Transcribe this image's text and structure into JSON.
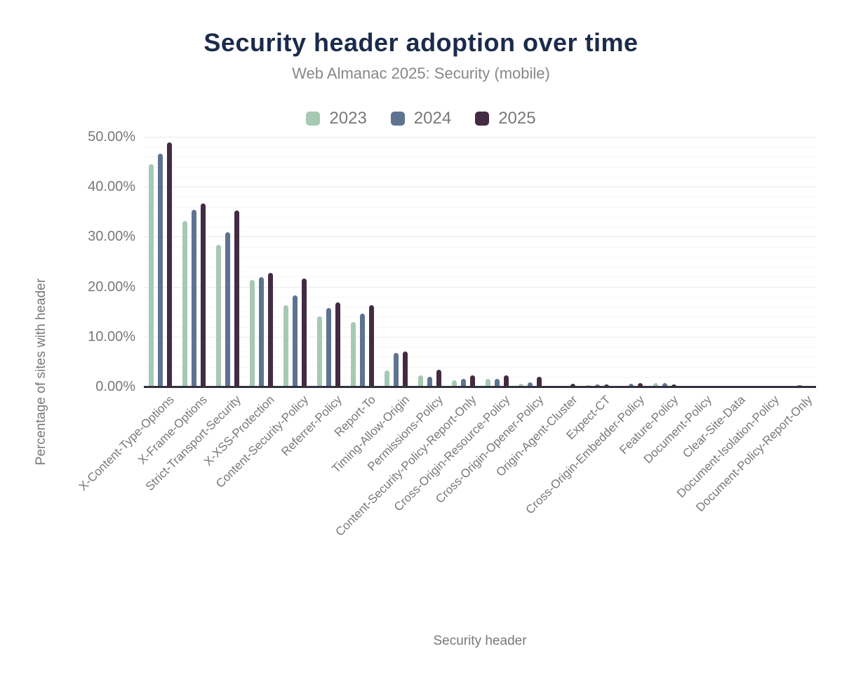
{
  "chart_data": {
    "type": "bar",
    "title": "Security header adoption over time",
    "subtitle": "Web Almanac 2025: Security (mobile)",
    "xlabel": "Security header",
    "ylabel": "Percentage of sites with header",
    "ylim": [
      0,
      50
    ],
    "ytick_step": 10,
    "minor_grid_step": 2,
    "grid": true,
    "legend_position": "top",
    "ytick_labels": [
      "0.00%",
      "10.00%",
      "20.00%",
      "30.00%",
      "40.00%",
      "50.00%"
    ],
    "categories": [
      "X-Content-Type-Options",
      "X-Frame-Options",
      "Strict-Transport-Security",
      "X-XSS-Protection",
      "Content-Security-Policy",
      "Referrer-Policy",
      "Report-To",
      "Timing-Allow-Origin",
      "Permissions-Policy",
      "Content-Security-Policy-Report-Only",
      "Cross-Origin-Resource-Policy",
      "Cross-Origin-Opener-Policy",
      "Origin-Agent-Cluster",
      "Expect-CT",
      "Cross-Origin-Embedder-Policy",
      "Feature-Policy",
      "Document-Policy",
      "Clear-Site-Data",
      "Document-Isolation-Policy",
      "Document-Policy-Report-Only"
    ],
    "series": [
      {
        "name": "2023",
        "color": "#a6c9b4",
        "values": [
          44.5,
          33.1,
          28.4,
          21.4,
          16.3,
          14.1,
          12.9,
          3.2,
          2.2,
          1.3,
          1.5,
          0.5,
          0.1,
          0.35,
          0.2,
          0.7,
          0.08,
          0.12,
          0.03,
          0.1
        ]
      },
      {
        "name": "2024",
        "color": "#5e7390",
        "values": [
          46.6,
          35.4,
          30.9,
          21.9,
          18.3,
          15.7,
          14.6,
          6.8,
          2.0,
          1.5,
          1.6,
          0.8,
          0.15,
          0.4,
          0.5,
          0.75,
          0.1,
          0.15,
          0.03,
          0.25
        ]
      },
      {
        "name": "2025",
        "color": "#432b42",
        "values": [
          48.9,
          36.6,
          35.2,
          22.8,
          21.6,
          16.9,
          16.3,
          7.0,
          3.4,
          2.3,
          2.2,
          1.9,
          0.5,
          0.4,
          0.65,
          0.4,
          0.15,
          0.2,
          0.12,
          0.2
        ]
      }
    ]
  },
  "colors": {
    "background": "#ffffff",
    "title": "#1b2b4b",
    "subtitle": "#85888b",
    "axis_text": "#76797c",
    "axis_line": "#32323e",
    "grid_major": "#e9e9e9",
    "grid_minor": "#f6f6f6"
  }
}
